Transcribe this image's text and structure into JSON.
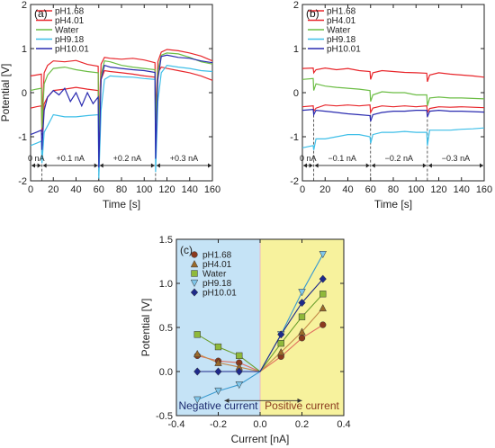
{
  "chart_data": [
    {
      "type": "line",
      "panel_label": "(a)",
      "xlabel": "Time [s]",
      "ylabel": "Potential [V]",
      "xlim": [
        0,
        160
      ],
      "ylim": [
        -2,
        2
      ],
      "x_ticks": [
        "0",
        "20",
        "40",
        "60",
        "80",
        "100",
        "120",
        "140",
        "160"
      ],
      "y_ticks": [
        "-2",
        "-1",
        "0",
        "1",
        "2"
      ],
      "legend_position": "top-left",
      "legend": [
        "pH1.68",
        "pH4.01",
        "Water",
        "pH9.18",
        "pH10.01"
      ],
      "intervals": [
        {
          "label": "0 nA",
          "from": 0,
          "to": 10
        },
        {
          "label": "+0.1 nA",
          "from": 10,
          "to": 60
        },
        {
          "label": "+0.2 nA",
          "from": 60,
          "to": 110
        },
        {
          "label": "+0.3 nA",
          "from": 110,
          "to": 160
        }
      ],
      "series": [
        {
          "name": "pH1.68",
          "color": "#e8262b",
          "x": [
            0,
            5,
            9.5,
            10,
            12,
            15,
            20,
            30,
            40,
            50,
            59.5,
            60,
            62,
            65,
            70,
            80,
            90,
            100,
            109.5,
            110,
            112,
            115,
            120,
            130,
            140,
            150,
            160
          ],
          "y": [
            0.38,
            0.4,
            0.42,
            -0.6,
            0.45,
            0.62,
            0.72,
            0.7,
            0.73,
            0.64,
            0.6,
            -0.7,
            0.65,
            0.8,
            0.78,
            0.76,
            0.78,
            0.74,
            0.68,
            -0.5,
            0.7,
            0.92,
            0.98,
            0.95,
            0.9,
            0.83,
            0.72
          ]
        },
        {
          "name": "pH4.01",
          "color": "#e8262b",
          "x": [
            0,
            5,
            9.5,
            10,
            12,
            15,
            20,
            30,
            40,
            50,
            59.5,
            60,
            62,
            65,
            70,
            80,
            90,
            100,
            109.5,
            110,
            112,
            115,
            120,
            130,
            140,
            150,
            160
          ],
          "y": [
            -0.35,
            -0.32,
            -0.3,
            -0.9,
            -0.25,
            -0.1,
            0.05,
            0.08,
            0.12,
            0.08,
            0.05,
            -1.0,
            0.3,
            0.5,
            0.48,
            0.45,
            0.42,
            0.38,
            0.35,
            -0.8,
            0.45,
            0.58,
            0.55,
            0.5,
            0.45,
            0.38,
            0.28
          ]
        },
        {
          "name": "Water",
          "color": "#6cbd45",
          "x": [
            0,
            5,
            9.5,
            10,
            12,
            15,
            20,
            30,
            40,
            50,
            59.5,
            60,
            62,
            65,
            70,
            80,
            90,
            100,
            109.5,
            110,
            112,
            115,
            120,
            130,
            140,
            150,
            160
          ],
          "y": [
            0.05,
            0.08,
            0.1,
            -0.8,
            0.2,
            0.4,
            0.55,
            0.58,
            0.52,
            0.48,
            0.45,
            -0.9,
            0.4,
            0.72,
            0.7,
            0.62,
            0.58,
            0.55,
            0.52,
            -0.7,
            0.5,
            0.85,
            0.9,
            0.88,
            0.8,
            0.7,
            0.65
          ]
        },
        {
          "name": "pH9.18",
          "color": "#3fbfe8",
          "x": [
            0,
            5,
            9.5,
            10,
            12,
            15,
            20,
            30,
            40,
            50,
            59.5,
            60,
            62,
            65,
            70,
            80,
            90,
            100,
            109.5,
            110,
            112,
            115,
            120,
            130,
            140,
            150,
            160
          ],
          "y": [
            -1.2,
            -1.15,
            -1.1,
            -1.6,
            -0.9,
            -0.75,
            -0.5,
            -0.55,
            -0.55,
            -0.52,
            -0.5,
            -1.95,
            -0.4,
            0.3,
            0.38,
            0.36,
            0.35,
            0.32,
            0.3,
            -1.8,
            -0.2,
            0.45,
            0.62,
            0.58,
            0.55,
            0.5,
            0.48
          ]
        },
        {
          "name": "pH10.01",
          "color": "#2a2bb0",
          "x": [
            0,
            5,
            9.5,
            10,
            12,
            15,
            20,
            25,
            30,
            35,
            40,
            45,
            50,
            55,
            59.5,
            60,
            62,
            65,
            70,
            80,
            90,
            100,
            109.5,
            110,
            112,
            115,
            120,
            130,
            140,
            150,
            160
          ],
          "y": [
            -0.95,
            -0.9,
            -0.85,
            -1.3,
            -0.4,
            -0.1,
            0.05,
            -0.05,
            0.1,
            -0.2,
            0.0,
            -0.3,
            0.0,
            -0.25,
            -0.1,
            -1.7,
            0.3,
            0.62,
            0.58,
            0.55,
            0.52,
            0.5,
            0.46,
            -1.5,
            0.3,
            0.82,
            0.85,
            0.8,
            0.78,
            0.72,
            0.68
          ]
        }
      ]
    },
    {
      "type": "line",
      "panel_label": "(b)",
      "xlabel": "Time [s]",
      "ylabel": "",
      "xlim": [
        0,
        160
      ],
      "ylim": [
        -2,
        2
      ],
      "x_ticks": [
        "0",
        "20",
        "40",
        "60",
        "80",
        "100",
        "120",
        "140",
        "160"
      ],
      "y_ticks": [
        "-2",
        "-1",
        "0",
        "1",
        "2"
      ],
      "legend_position": "top-left",
      "legend": [
        "pH1.68",
        "pH4.01",
        "Water",
        "pH9.18",
        "pH10.01"
      ],
      "intervals": [
        {
          "label": "0 nA",
          "from": 0,
          "to": 10
        },
        {
          "label": "−0.1 nA",
          "from": 10,
          "to": 60
        },
        {
          "label": "−0.2 nA",
          "from": 60,
          "to": 110
        },
        {
          "label": "−0.3 nA",
          "from": 110,
          "to": 160
        }
      ],
      "series": [
        {
          "name": "pH1.68",
          "color": "#e8262b",
          "x": [
            0,
            9.5,
            10,
            12,
            20,
            30,
            40,
            50,
            59.5,
            60,
            62,
            70,
            80,
            90,
            100,
            109.5,
            110,
            112,
            120,
            130,
            140,
            150,
            160
          ],
          "y": [
            0.55,
            0.56,
            0.45,
            0.52,
            0.56,
            0.52,
            0.55,
            0.5,
            0.48,
            0.3,
            0.45,
            0.5,
            0.48,
            0.46,
            0.45,
            0.44,
            0.25,
            0.4,
            0.45,
            0.42,
            0.4,
            0.38,
            0.35
          ]
        },
        {
          "name": "pH4.01",
          "color": "#e8262b",
          "x": [
            0,
            9.5,
            10,
            12,
            20,
            30,
            40,
            50,
            59.5,
            60,
            62,
            70,
            80,
            90,
            100,
            109.5,
            110,
            112,
            120,
            130,
            140,
            150,
            160
          ],
          "y": [
            -0.32,
            -0.3,
            -0.42,
            -0.35,
            -0.28,
            -0.3,
            -0.28,
            -0.3,
            -0.28,
            -0.45,
            -0.35,
            -0.3,
            -0.32,
            -0.3,
            -0.32,
            -0.3,
            -0.45,
            -0.36,
            -0.32,
            -0.33,
            -0.32,
            -0.33,
            -0.34
          ]
        },
        {
          "name": "Water",
          "color": "#6cbd45",
          "x": [
            0,
            9.5,
            10,
            12,
            20,
            30,
            40,
            50,
            59.5,
            60,
            62,
            70,
            80,
            90,
            100,
            109.5,
            110,
            112,
            120,
            130,
            140,
            150,
            160
          ],
          "y": [
            0.3,
            0.32,
            0.05,
            0.2,
            0.15,
            0.12,
            0.1,
            0.08,
            0.05,
            -0.2,
            -0.05,
            0.02,
            0.0,
            0.0,
            -0.05,
            -0.05,
            -0.3,
            -0.12,
            -0.1,
            -0.12,
            -0.12,
            -0.13,
            -0.14
          ]
        },
        {
          "name": "pH9.18",
          "color": "#3fbfe8",
          "x": [
            0,
            9.5,
            10,
            12,
            20,
            30,
            40,
            50,
            59.5,
            60,
            62,
            70,
            80,
            90,
            100,
            109.5,
            110,
            112,
            120,
            130,
            140,
            150,
            160
          ],
          "y": [
            -1.25,
            -1.2,
            -1.3,
            -1.05,
            -1.05,
            -1.0,
            -0.95,
            -0.95,
            -1.0,
            -1.15,
            -0.95,
            -0.9,
            -0.9,
            -0.88,
            -0.9,
            -0.9,
            -1.2,
            -0.85,
            -0.85,
            -0.85,
            -0.83,
            -0.82,
            -0.8
          ]
        },
        {
          "name": "pH10.01",
          "color": "#2a2bb0",
          "x": [
            0,
            9.5,
            10,
            12,
            20,
            30,
            40,
            50,
            59.5,
            60,
            62,
            70,
            80,
            90,
            100,
            109.5,
            110,
            112,
            120,
            130,
            140,
            150,
            160
          ],
          "y": [
            -0.4,
            -0.38,
            -0.5,
            -0.4,
            -0.42,
            -0.45,
            -0.48,
            -0.5,
            -0.52,
            -0.65,
            -0.5,
            -0.45,
            -0.42,
            -0.42,
            -0.4,
            -0.4,
            -0.55,
            -0.42,
            -0.4,
            -0.42,
            -0.42,
            -0.43,
            -0.44
          ]
        }
      ]
    },
    {
      "type": "scatter",
      "panel_label": "(c)",
      "xlabel": "Current [nA]",
      "ylabel": "Potential [V]",
      "xlim": [
        -0.4,
        0.4
      ],
      "ylim": [
        -0.5,
        1.5
      ],
      "x_ticks": [
        "-0.4",
        "-0.2",
        "0.0",
        "0.2",
        "0.4"
      ],
      "y_ticks": [
        "-0.5",
        "0.0",
        "0.5",
        "1.0",
        "1.5"
      ],
      "legend_position": "top-left",
      "negative_region_label": "Negative current",
      "positive_region_label": "Positive current",
      "negative_region_color": "#c5e3f6",
      "positive_region_color": "#f7f29d",
      "series": [
        {
          "name": "pH1.68",
          "marker": "circle",
          "fill": "#8b3a1e",
          "line": "#e07060",
          "x": [
            -0.3,
            -0.2,
            -0.1,
            0,
            0.1,
            0.2,
            0.3
          ],
          "y": [
            0.18,
            0.12,
            0.1,
            0,
            0.17,
            0.38,
            0.53
          ]
        },
        {
          "name": "pH4.01",
          "marker": "triangle-up",
          "fill": "#9a6a2a",
          "line": "#c48a4a",
          "x": [
            -0.3,
            -0.2,
            -0.1,
            0,
            0.1,
            0.2,
            0.3
          ],
          "y": [
            0.2,
            0.1,
            0.05,
            0,
            0.22,
            0.45,
            0.72
          ]
        },
        {
          "name": "Water",
          "marker": "square",
          "fill": "#8fb93a",
          "line": "#6ea030",
          "x": [
            -0.3,
            -0.2,
            -0.1,
            0,
            0.1,
            0.2,
            0.3
          ],
          "y": [
            0.42,
            0.28,
            0.18,
            0,
            0.32,
            0.62,
            0.88
          ]
        },
        {
          "name": "pH9.18",
          "marker": "triangle-down",
          "fill": "#7fc6ea",
          "line": "#3a9ad0",
          "x": [
            -0.3,
            -0.2,
            -0.1,
            0,
            0.1,
            0.2,
            0.3
          ],
          "y": [
            -0.32,
            -0.22,
            -0.15,
            0,
            0.42,
            0.9,
            1.33
          ]
        },
        {
          "name": "pH10.01",
          "marker": "diamond",
          "fill": "#1e2a8a",
          "line": "#1e2a8a",
          "x": [
            -0.3,
            -0.2,
            -0.1,
            0,
            0.1,
            0.2,
            0.3
          ],
          "y": [
            0.0,
            0.0,
            0.0,
            0,
            0.42,
            0.78,
            1.05
          ]
        }
      ]
    }
  ]
}
